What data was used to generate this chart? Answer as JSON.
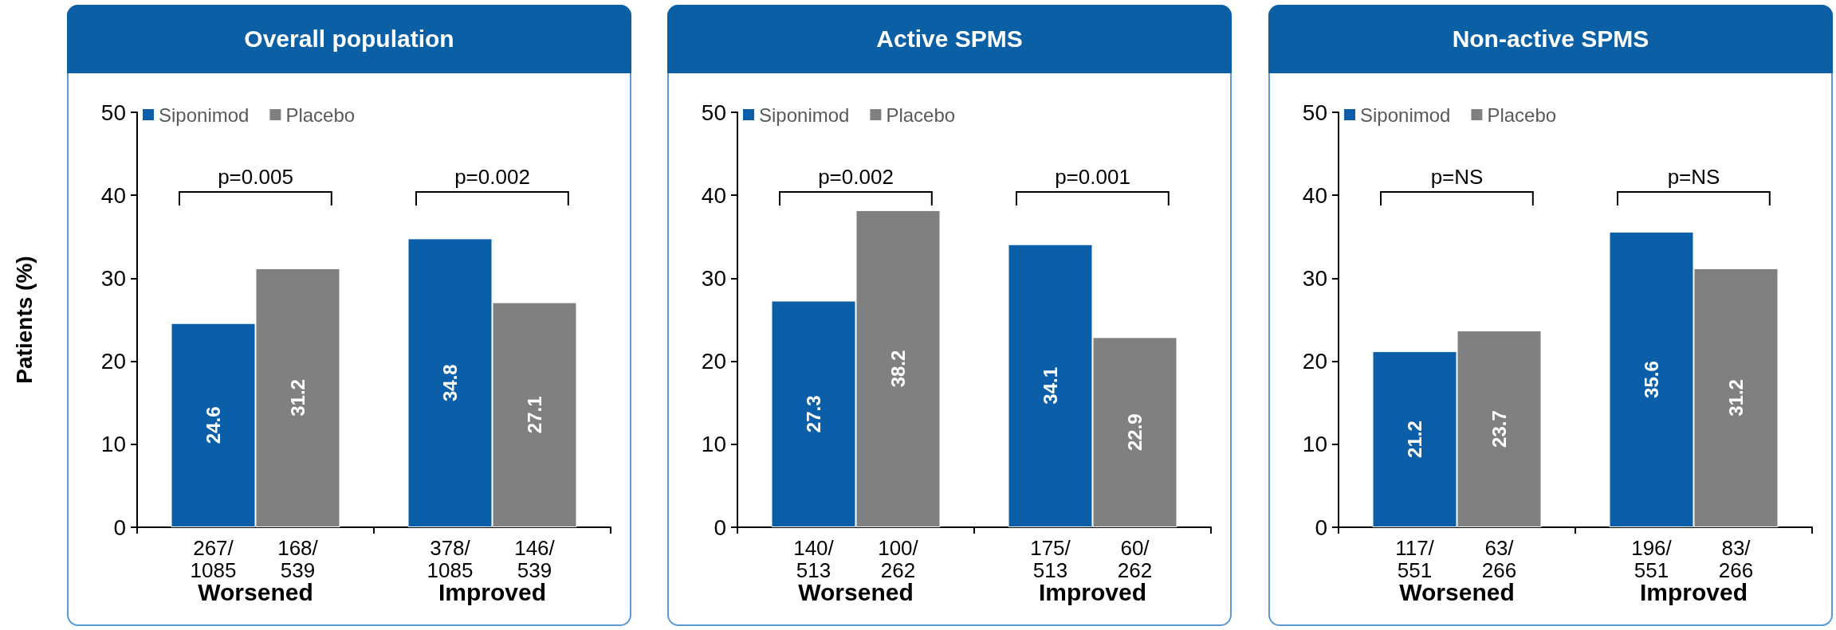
{
  "chart_data": [
    {
      "type": "bar",
      "title": "Overall population",
      "ylabel": "Patients (%)",
      "categories": [
        "Worsened",
        "Improved"
      ],
      "series": [
        {
          "name": "Siponimod",
          "color": "#0a5fa8",
          "values": [
            24.6,
            34.8
          ]
        },
        {
          "name": "Placebo",
          "color": "#808080",
          "values": [
            31.2,
            27.1
          ]
        }
      ],
      "ylim": [
        0,
        50
      ],
      "yticks": [
        0,
        10,
        20,
        30,
        40,
        50
      ],
      "data_labels": true,
      "legend": "top",
      "grid": false,
      "annotations": [
        "p=0.005",
        "p=0.002",
        {
          "text": "267/1085",
          "x": "Worsened",
          "y": 0
        },
        {
          "text": "168/539",
          "x": "Worsened",
          "y": 0
        },
        {
          "text": "378/1085",
          "x": "Improved",
          "y": 0
        },
        {
          "text": "146/539",
          "x": "Improved",
          "y": 0
        }
      ]
    },
    {
      "type": "bar",
      "title": "Active SPMS",
      "categories": [
        "Worsened",
        "Improved"
      ],
      "series": [
        {
          "name": "Siponimod",
          "color": "#0a5fa8",
          "values": [
            27.3,
            34.1
          ]
        },
        {
          "name": "Placebo",
          "color": "#808080",
          "values": [
            38.2,
            22.9
          ]
        }
      ],
      "ylim": [
        0,
        50
      ],
      "yticks": [
        0,
        10,
        20,
        30,
        40,
        50
      ],
      "data_labels": true,
      "legend": "top",
      "grid": false,
      "annotations": [
        "p=0.002",
        "p=0.001",
        {
          "text": "140/513",
          "x": "Worsened",
          "y": 0
        },
        {
          "text": "100/262",
          "x": "Worsened",
          "y": 0
        },
        {
          "text": "175/513",
          "x": "Improved",
          "y": 0
        },
        {
          "text": "60/262",
          "x": "Improved",
          "y": 0
        }
      ]
    },
    {
      "type": "bar",
      "title": "Non-active SPMS",
      "categories": [
        "Worsened",
        "Improved"
      ],
      "series": [
        {
          "name": "Siponimod",
          "color": "#0a5fa8",
          "values": [
            21.2,
            35.6
          ]
        },
        {
          "name": "Placebo",
          "color": "#808080",
          "values": [
            23.7,
            31.2
          ]
        }
      ],
      "ylim": [
        0,
        50
      ],
      "yticks": [
        0,
        10,
        20,
        30,
        40,
        50
      ],
      "data_labels": true,
      "legend": "top",
      "grid": false,
      "annotations": [
        "p=NS",
        "p=NS",
        {
          "text": "117/551",
          "x": "Worsened",
          "y": 0
        },
        {
          "text": "63/266",
          "x": "Worsened",
          "y": 0
        },
        {
          "text": "196/551",
          "x": "Improved",
          "y": 0
        },
        {
          "text": "83/266",
          "x": "Improved",
          "y": 0
        }
      ]
    }
  ]
}
